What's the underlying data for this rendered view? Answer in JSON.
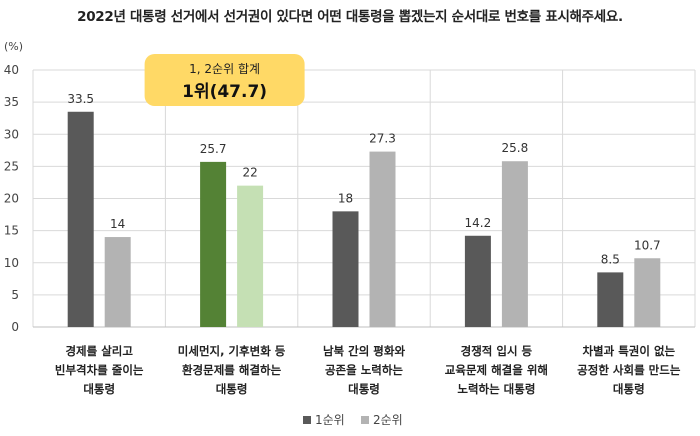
{
  "chart_data": {
    "type": "bar",
    "title": "2022년 대통령 선거에서 선거권이 있다면 어떤 대통령을 뽑겠는지 순서대로 번호를 표시해주세요.",
    "ylabel": "(%)",
    "ylim": [
      0,
      40
    ],
    "yticks": [
      0,
      5,
      10,
      15,
      20,
      25,
      30,
      35,
      40
    ],
    "grid": true,
    "legend_position": "bottom",
    "categories": [
      [
        "경제를 살리고",
        "빈부격차를 줄이는",
        "대통령"
      ],
      [
        "미세먼지, 기후변화 등",
        "환경문제를 해결하는",
        "대통령"
      ],
      [
        "남북 간의 평화와",
        "공존을 노력하는",
        "대통령"
      ],
      [
        "경쟁적 입시 등",
        "교육문제 해결을 위해",
        "노력하는 대통령"
      ],
      [
        "차별과 특권이 없는",
        "공정한 사회를 만드는",
        "대통령"
      ]
    ],
    "series": [
      {
        "name": "1순위",
        "values": [
          33.5,
          25.7,
          18,
          14.2,
          8.5
        ],
        "labels": [
          "33.5",
          "25.7",
          "18",
          "14.2",
          "8.5"
        ]
      },
      {
        "name": "2순위",
        "values": [
          14,
          22,
          27.3,
          25.8,
          10.7
        ],
        "labels": [
          "14",
          "22",
          "27.3",
          "25.8",
          "10.7"
        ]
      }
    ],
    "colors": {
      "series1": "#595959",
      "series2": "#b3b3b3",
      "highlight1": "#548235",
      "highlight2": "#c5e0b4",
      "grid": "#d9d9d9",
      "callout": "#ffd966"
    },
    "highlight_category": 1,
    "annotation": {
      "line1": "1, 2순위 합계",
      "line2": "1위(47.7)"
    }
  }
}
